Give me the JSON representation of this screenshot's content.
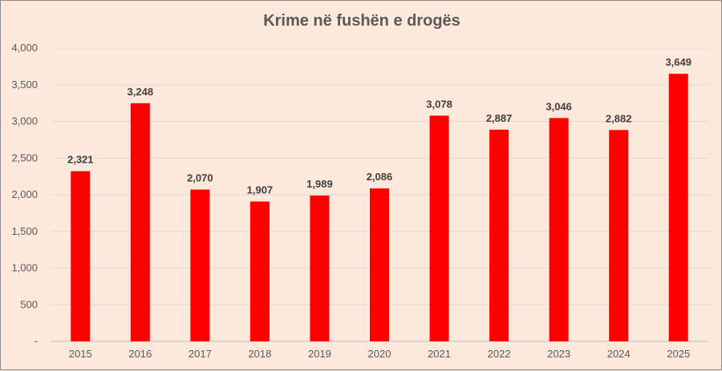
{
  "chart_data": {
    "type": "bar",
    "title": "Krime në fushën e drogës",
    "categories": [
      "2015",
      "2016",
      "2017",
      "2018",
      "2019",
      "2020",
      "2021",
      "2022",
      "2023",
      "2024",
      "2025"
    ],
    "values": [
      2321,
      3248,
      2070,
      1907,
      1989,
      2086,
      3078,
      2887,
      3046,
      2882,
      3649
    ],
    "value_labels": [
      "2,321",
      "3,248",
      "2,070",
      "1,907",
      "1,989",
      "2,086",
      "3,078",
      "2,887",
      "3,046",
      "2,882",
      "3,649"
    ],
    "ylim": [
      0,
      4000
    ],
    "yticks": [
      0,
      500,
      1000,
      1500,
      2000,
      2500,
      3000,
      3500,
      4000
    ],
    "ytick_labels": [
      "-",
      "500",
      "1,000",
      "1,500",
      "2,000",
      "2,500",
      "3,000",
      "3,500",
      "4,000"
    ],
    "xlabel": "",
    "ylabel": "",
    "grid": true,
    "legend": "none",
    "colors": {
      "bar": "#ff0000",
      "grid": "#d9d9d9",
      "background": "#fde9dc",
      "text": "#595959"
    }
  }
}
